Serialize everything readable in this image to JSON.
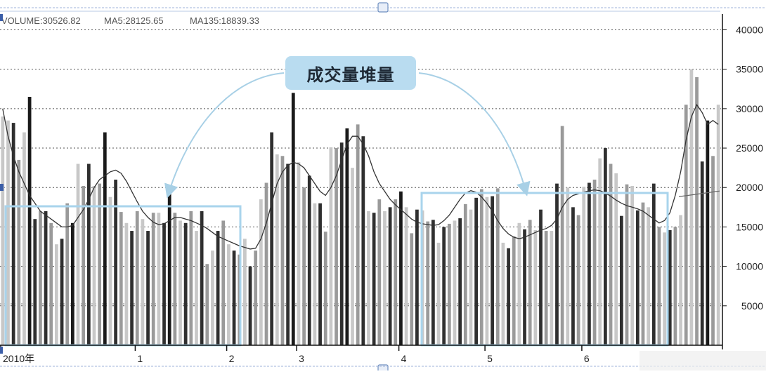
{
  "chart_data": {
    "type": "bar",
    "legend": {
      "volume_label": "VOLUME:30526.82",
      "ma5_label": "MA5:28125.65",
      "ma135_label": "MA135:18839.33"
    },
    "callout_label": "成交量堆量",
    "y_ticks": [
      5000,
      10000,
      15000,
      20000,
      25000,
      30000,
      35000,
      40000
    ],
    "ylim": [
      0,
      42000
    ],
    "grid": true,
    "x_ticks": [
      {
        "label": "2010年",
        "index": 0
      },
      {
        "label": "1",
        "index": 25
      },
      {
        "label": "2",
        "index": 42
      },
      {
        "label": "3",
        "index": 55
      },
      {
        "label": "4",
        "index": 74
      },
      {
        "label": "5",
        "index": 90
      },
      {
        "label": "6",
        "index": 108
      }
    ],
    "values": [
      29000,
      28500,
      28200,
      23500,
      27000,
      31500,
      16000,
      17000,
      17000,
      15500,
      12800,
      13500,
      18000,
      15500,
      23000,
      20200,
      23000,
      20200,
      20500,
      27000,
      18800,
      21000,
      16900,
      15500,
      14500,
      17000,
      16000,
      14500,
      16800,
      16800,
      15500,
      19700,
      16800,
      15800,
      15500,
      17000,
      14500,
      17000,
      10300,
      12000,
      14500,
      15800,
      12800,
      12000,
      11500,
      13500,
      10000,
      12000,
      18500,
      20600,
      27000,
      24200,
      24000,
      23000,
      32000,
      23200,
      20000,
      21500,
      18000,
      18000,
      14400,
      25100,
      25000,
      25700,
      27500,
      22500,
      28000,
      26500,
      17000,
      16800,
      18500,
      17000,
      17500,
      18500,
      19500,
      17500,
      14200,
      17200,
      17100,
      15700,
      15900,
      13000,
      15000,
      15400,
      15800,
      16100,
      17900,
      17200,
      18700,
      19800,
      18800,
      18900,
      19900,
      13000,
      12300,
      13800,
      15500,
      14700,
      15900,
      14600,
      17200,
      14500,
      14500,
      20500,
      27800,
      20000,
      17500,
      16500,
      20100,
      20600,
      21000,
      23700,
      25000,
      23000,
      21800,
      16400,
      20400,
      20200,
      17100,
      18100,
      17500,
      20500,
      15000,
      14300,
      14600,
      15000,
      16500,
      30500,
      35000,
      34000,
      23300,
      28500,
      24000,
      30500
    ],
    "colors": [
      "#c8c8c8",
      "#c8c8c8",
      "#2f2f2f",
      "#9a9a9a",
      "#c8c8c8",
      "#1a1a1a",
      "#2f2f2f",
      "#9a9a9a",
      "#2f2f2f",
      "#9a9a9a",
      "#c8c8c8",
      "#2f2f2f",
      "#9a9a9a",
      "#1a1a1a",
      "#c8c8c8",
      "#9a9a9a",
      "#2f2f2f",
      "#c8c8c8",
      "#9a9a9a",
      "#1a1a1a",
      "#c8c8c8",
      "#2f2f2f",
      "#9a9a9a",
      "#c8c8c8",
      "#2f2f2f",
      "#9a9a9a",
      "#c8c8c8",
      "#2f2f2f",
      "#9a9a9a",
      "#c8c8c8",
      "#2f2f2f",
      "#1a1a1a",
      "#9a9a9a",
      "#c8c8c8",
      "#2f2f2f",
      "#9a9a9a",
      "#c8c8c8",
      "#2f2f2f",
      "#9a9a9a",
      "#c8c8c8",
      "#2f2f2f",
      "#9a9a9a",
      "#c8c8c8",
      "#2f2f2f",
      "#9a9a9a",
      "#c8c8c8",
      "#2f2f2f",
      "#9a9a9a",
      "#c8c8c8",
      "#9a9a9a",
      "#2f2f2f",
      "#c8c8c8",
      "#9a9a9a",
      "#2f2f2f",
      "#1a1a1a",
      "#c8c8c8",
      "#9a9a9a",
      "#2f2f2f",
      "#c8c8c8",
      "#2f2f2f",
      "#9a9a9a",
      "#c8c8c8",
      "#9a9a9a",
      "#2f2f2f",
      "#1a1a1a",
      "#c8c8c8",
      "#9a9a9a",
      "#2f2f2f",
      "#c8c8c8",
      "#2f2f2f",
      "#9a9a9a",
      "#c8c8c8",
      "#2f2f2f",
      "#9a9a9a",
      "#1a1a1a",
      "#c8c8c8",
      "#9a9a9a",
      "#2f2f2f",
      "#c8c8c8",
      "#9a9a9a",
      "#2f2f2f",
      "#c8c8c8",
      "#2f2f2f",
      "#9a9a9a",
      "#c8c8c8",
      "#2f2f2f",
      "#9a9a9a",
      "#c8c8c8",
      "#2f2f2f",
      "#9a9a9a",
      "#c8c8c8",
      "#2f2f2f",
      "#9a9a9a",
      "#c8c8c8",
      "#2f2f2f",
      "#9a9a9a",
      "#c8c8c8",
      "#2f2f2f",
      "#9a9a9a",
      "#c8c8c8",
      "#2f2f2f",
      "#9a9a9a",
      "#c8c8c8",
      "#2f2f2f",
      "#9a9a9a",
      "#c8c8c8",
      "#2f2f2f",
      "#9a9a9a",
      "#c8c8c8",
      "#2f2f2f",
      "#9a9a9a",
      "#c8c8c8",
      "#2f2f2f",
      "#9a9a9a",
      "#c8c8c8",
      "#2f2f2f",
      "#9a9a9a",
      "#c8c8c8",
      "#2f2f2f",
      "#9a9a9a",
      "#c8c8c8",
      "#2f2f2f",
      "#9a9a9a",
      "#c8c8c8",
      "#2f2f2f",
      "#9a9a9a",
      "#c8c8c8",
      "#9a9a9a",
      "#c8c8c8",
      "#9a9a9a",
      "#2f2f2f",
      "#1a1a1a",
      "#9a9a9a",
      "#c8c8c8"
    ],
    "ma_line": [
      30000,
      26500,
      24000,
      22000,
      20500,
      19000,
      18000,
      17000,
      16500,
      16000,
      15500,
      15000,
      15000,
      15200,
      16200,
      17200,
      18500,
      20000,
      21000,
      21500,
      22000,
      22200,
      21800,
      20800,
      19500,
      18200,
      17000,
      16200,
      15600,
      15300,
      15400,
      15800,
      16200,
      16200,
      16000,
      15800,
      15500,
      15200,
      14800,
      14300,
      13800,
      13500,
      13200,
      12900,
      12600,
      12400,
      12200,
      12300,
      13500,
      15500,
      18000,
      20500,
      22000,
      22800,
      23200,
      23000,
      22500,
      21500,
      20500,
      19500,
      19000,
      20000,
      21500,
      23500,
      25500,
      26500,
      26500,
      25500,
      24000,
      22000,
      20500,
      19500,
      18500,
      17800,
      17200,
      16600,
      16000,
      15600,
      15400,
      15300,
      15200,
      15300,
      15800,
      16500,
      17500,
      18500,
      19300,
      19600,
      19400,
      18800,
      18000,
      17000,
      15800,
      14800,
      14100,
      13700,
      13500,
      13700,
      14000,
      14300,
      14600,
      14800,
      15200,
      16000,
      17500,
      18500,
      19000,
      19200,
      19400,
      19600,
      19700,
      19600,
      19300,
      18900,
      18400,
      18000,
      17700,
      17500,
      17300,
      17000,
      16500,
      16000,
      15500,
      15800,
      16800,
      19000,
      22000,
      26000,
      29000,
      30500,
      29500,
      28000,
      28500,
      28000
    ]
  }
}
